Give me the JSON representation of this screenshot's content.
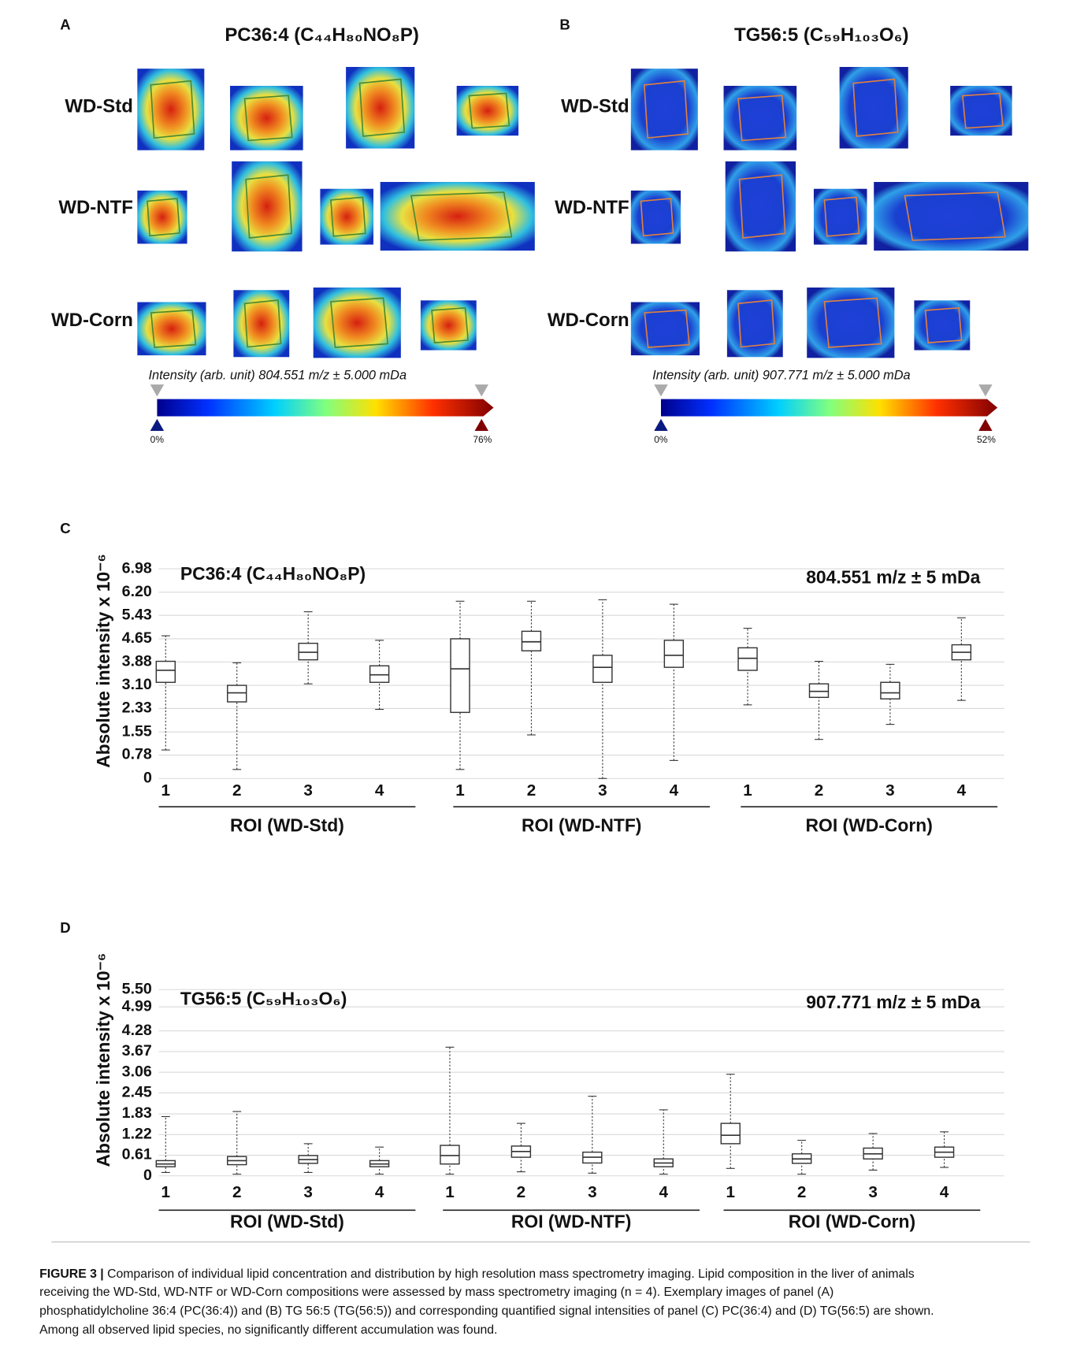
{
  "panels": [
    {
      "letter": "A",
      "title": "PC36:4 (C₄₄H₈₀NO₈P)",
      "rows": [
        "WD-Std",
        "WD-NTF",
        "WD-Corn"
      ],
      "colorbar": {
        "label": "Intensity (arb. unit) 804.551 m/z ± 5.000 mDa",
        "min": "0%",
        "max": "76%"
      }
    },
    {
      "letter": "B",
      "title": "TG56:5 (C₅₉H₁₀₃O₆)",
      "rows": [
        "WD-Std",
        "WD-NTF",
        "WD-Corn"
      ],
      "colorbar": {
        "label": "Intensity (arb. unit) 907.771 m/z ± 5.000 mDa",
        "min": "0%",
        "max": "52%"
      }
    }
  ],
  "chart_data": [
    {
      "type": "box",
      "panel": "C",
      "title": "PC36:4 (C₄₄H₈₀NO₈P)",
      "annotation": "804.551 m/z ± 5 mDa",
      "ylabel": "Absolute intensity x 10⁻⁶",
      "ylim": [
        0,
        7.2
      ],
      "yticks": [
        0,
        0.78,
        1.55,
        2.33,
        {
          "value": 3.1,
          "label": "3.10"
        },
        3.88,
        4.65,
        5.43,
        {
          "value": 6.2,
          "label": "6.20"
        },
        6.98
      ],
      "grid": true,
      "color": "#333333",
      "groups": [
        {
          "name": "ROI (WD-Std)",
          "categories": [
            "1",
            "2",
            "3",
            "4"
          ],
          "boxes": [
            {
              "min": 0.95,
              "q1": 3.2,
              "median": 3.6,
              "q3": 3.9,
              "max": 4.75
            },
            {
              "min": 0.3,
              "q1": 2.55,
              "median": 2.85,
              "q3": 3.1,
              "max": 3.85
            },
            {
              "min": 3.15,
              "q1": 3.95,
              "median": 4.2,
              "q3": 4.5,
              "max": 5.55
            },
            {
              "min": 2.3,
              "q1": 3.2,
              "median": 3.45,
              "q3": 3.75,
              "max": 4.6
            }
          ]
        },
        {
          "name": "ROI (WD-NTF)",
          "categories": [
            "1",
            "2",
            "3",
            "4"
          ],
          "boxes": [
            {
              "min": 0.3,
              "q1": 2.2,
              "median": 3.65,
              "q3": 4.65,
              "max": 5.9
            },
            {
              "min": 1.45,
              "q1": 4.25,
              "median": 4.55,
              "q3": 4.9,
              "max": 5.9
            },
            {
              "min": 0,
              "q1": 3.2,
              "median": 3.7,
              "q3": 4.1,
              "max": 5.95
            },
            {
              "min": 0.6,
              "q1": 3.7,
              "median": 4.1,
              "q3": 4.6,
              "max": 5.8
            }
          ]
        },
        {
          "name": "ROI (WD-Corn)",
          "categories": [
            "1",
            "2",
            "3",
            "4"
          ],
          "boxes": [
            {
              "min": 2.45,
              "q1": 3.6,
              "median": 4.0,
              "q3": 4.35,
              "max": 5.0
            },
            {
              "min": 1.3,
              "q1": 2.7,
              "median": 2.9,
              "q3": 3.15,
              "max": 3.9
            },
            {
              "min": 1.8,
              "q1": 2.65,
              "median": 2.85,
              "q3": 3.2,
              "max": 3.8
            },
            {
              "min": 2.6,
              "q1": 3.95,
              "median": 4.2,
              "q3": 4.45,
              "max": 5.35
            }
          ]
        }
      ]
    },
    {
      "type": "box",
      "panel": "D",
      "title": "TG56:5 (C₅₉H₁₀₃O₆)",
      "annotation": "907.771 m/z ± 5 mDa",
      "ylabel": "Absolute intensity x 10⁻⁶",
      "ylim": [
        0,
        5.6
      ],
      "yticks": [
        0,
        0.61,
        1.22,
        1.83,
        2.45,
        3.06,
        3.67,
        4.28,
        4.99,
        {
          "value": 5.5,
          "label": "5.50"
        }
      ],
      "grid": true,
      "color": "#333333",
      "groups": [
        {
          "name": "ROI (WD-Std)",
          "categories": [
            "1",
            "2",
            "3",
            "4"
          ],
          "boxes": [
            {
              "min": 0.1,
              "q1": 0.27,
              "median": 0.35,
              "q3": 0.45,
              "max": 1.75
            },
            {
              "min": 0.05,
              "q1": 0.33,
              "median": 0.45,
              "q3": 0.57,
              "max": 1.9
            },
            {
              "min": 0.1,
              "q1": 0.37,
              "median": 0.48,
              "q3": 0.6,
              "max": 0.95
            },
            {
              "min": 0.05,
              "q1": 0.27,
              "median": 0.35,
              "q3": 0.45,
              "max": 0.85
            }
          ]
        },
        {
          "name": "ROI (WD-NTF)",
          "categories": [
            "1",
            "2",
            "3",
            "4"
          ],
          "boxes": [
            {
              "min": 0.05,
              "q1": 0.35,
              "median": 0.6,
              "q3": 0.9,
              "max": 3.8
            },
            {
              "min": 0.12,
              "q1": 0.55,
              "median": 0.72,
              "q3": 0.88,
              "max": 1.55
            },
            {
              "min": 0.08,
              "q1": 0.38,
              "median": 0.55,
              "q3": 0.7,
              "max": 2.35
            },
            {
              "min": 0.05,
              "q1": 0.27,
              "median": 0.38,
              "q3": 0.5,
              "max": 1.95
            }
          ]
        },
        {
          "name": "ROI (WD-Corn)",
          "categories": [
            "1",
            "2",
            "3",
            "4"
          ],
          "boxes": [
            {
              "min": 0.22,
              "q1": 0.95,
              "median": 1.2,
              "q3": 1.55,
              "max": 3.0
            },
            {
              "min": 0.05,
              "q1": 0.37,
              "median": 0.5,
              "q3": 0.65,
              "max": 1.05
            },
            {
              "min": 0.17,
              "q1": 0.5,
              "median": 0.65,
              "q3": 0.82,
              "max": 1.25
            },
            {
              "min": 0.25,
              "q1": 0.55,
              "median": 0.7,
              "q3": 0.85,
              "max": 1.3
            }
          ]
        }
      ]
    }
  ],
  "caption": {
    "label": "FIGURE 3 |",
    "lines": [
      "Comparison of individual lipid concentration and distribution by high resolution mass spectrometry imaging. Lipid composition in the liver of animals",
      "receiving the WD-Std, WD-NTF or WD-Corn compositions were assessed by mass spectrometry imaging (n = 4). Exemplary images of panel (A)",
      "phosphatidylcholine 36:4 (PC(36:4)) and (B) TG 56:5 (TG(56:5)) and corresponding quantified signal intensities of panel (C) PC(36:4) and (D) TG(56:5) are shown.",
      "Among all observed lipid species, no significantly different accumulation was found."
    ]
  }
}
